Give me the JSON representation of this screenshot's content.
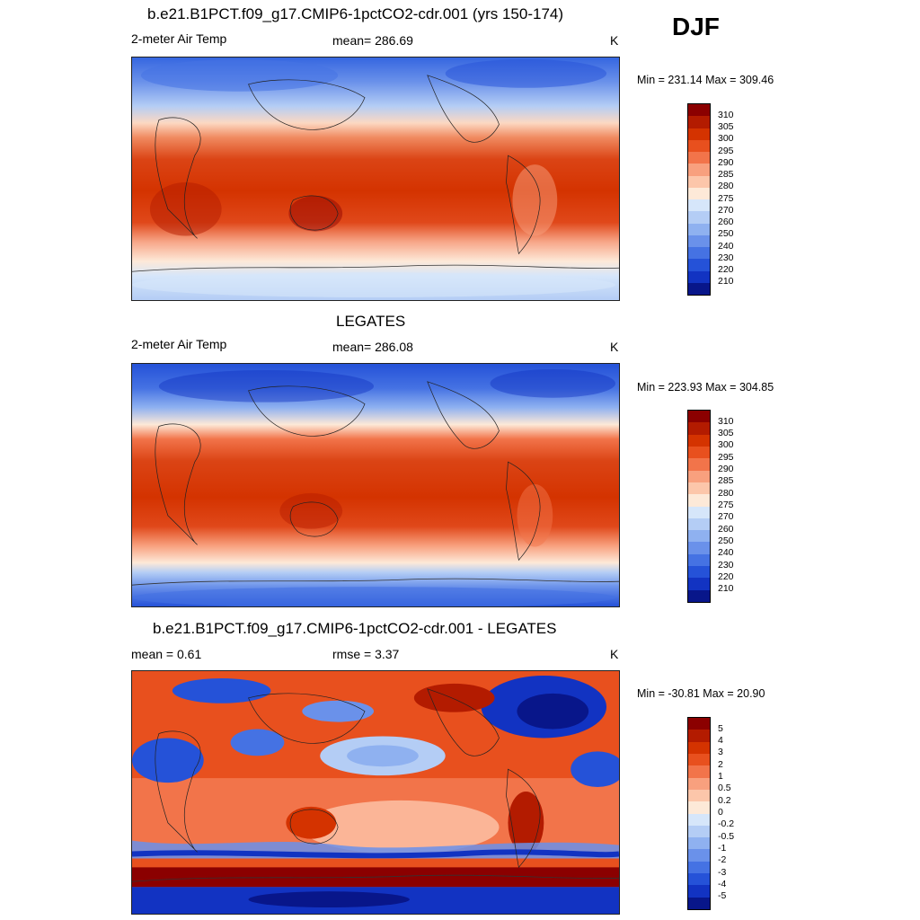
{
  "season": "DJF",
  "panels": [
    {
      "title": "b.e21.B1PCT.f09_g17.CMIP6-1pctCO2-cdr.001 (yrs 150-174)",
      "left_label": "2-meter Air Temp",
      "center_label": "mean= 286.69",
      "units": "K",
      "minmax": "Min = 231.14 Max = 309.46",
      "colorbar": {
        "labels": [
          "310",
          "305",
          "300",
          "295",
          "290",
          "285",
          "280",
          "275",
          "270",
          "260",
          "250",
          "240",
          "230",
          "220",
          "210"
        ],
        "colors": [
          "#8b0000",
          "#b31b00",
          "#d43300",
          "#e8501e",
          "#f2744a",
          "#f8a07e",
          "#fcc6aa",
          "#fde9d8",
          "#d6e6fa",
          "#b4cdf5",
          "#8fb1f0",
          "#6a91ea",
          "#4572e3",
          "#2552d8",
          "#1233c2",
          "#08168a"
        ]
      }
    },
    {
      "title": "LEGATES",
      "left_label": "2-meter Air Temp",
      "center_label": "mean= 286.08",
      "units": "K",
      "minmax": "Min = 223.93 Max = 304.85",
      "colorbar": {
        "labels": [
          "310",
          "305",
          "300",
          "295",
          "290",
          "285",
          "280",
          "275",
          "270",
          "260",
          "250",
          "240",
          "230",
          "220",
          "210"
        ],
        "colors": [
          "#8b0000",
          "#b31b00",
          "#d43300",
          "#e8501e",
          "#f2744a",
          "#f8a07e",
          "#fcc6aa",
          "#fde9d8",
          "#d6e6fa",
          "#b4cdf5",
          "#8fb1f0",
          "#6a91ea",
          "#4572e3",
          "#2552d8",
          "#1233c2",
          "#08168a"
        ]
      }
    },
    {
      "title": "b.e21.B1PCT.f09_g17.CMIP6-1pctCO2-cdr.001 - LEGATES",
      "left_label": "mean =   0.61",
      "center_label": "rmse =   3.37",
      "units": "K",
      "minmax": "Min = -30.81 Max =  20.90",
      "colorbar": {
        "labels": [
          "5",
          "4",
          "3",
          "2",
          "1",
          "0.5",
          "0.2",
          "0",
          "-0.2",
          "-0.5",
          "-1",
          "-2",
          "-3",
          "-4",
          "-5"
        ],
        "colors": [
          "#8b0000",
          "#b31b00",
          "#d43300",
          "#e8501e",
          "#f2744a",
          "#f8a07e",
          "#fcc6aa",
          "#fde9d8",
          "#d6e6fa",
          "#b4cdf5",
          "#8fb1f0",
          "#6a91ea",
          "#4572e3",
          "#2552d8",
          "#1233c2",
          "#08168a"
        ]
      }
    }
  ]
}
